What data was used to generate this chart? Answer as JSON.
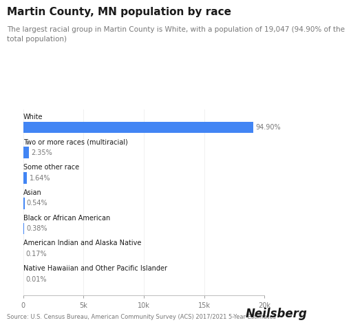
{
  "title": "Martin County, MN population by race",
  "subtitle": "The largest racial group in Martin County is White, with a population of 19,047 (94.90% of the\ntotal population)",
  "categories": [
    "White",
    "Two or more races (multiracial)",
    "Some other race",
    "Asian",
    "Black or African American",
    "American Indian and Alaska Native",
    "Native Hawaiian and Other Pacific Islander"
  ],
  "values": [
    19047,
    472,
    330,
    108,
    76,
    34,
    2
  ],
  "percentages": [
    "94.90%",
    "2.35%",
    "1.64%",
    "0.54%",
    "0.38%",
    "0.17%",
    "0.01%"
  ],
  "bar_color": "#4285F4",
  "text_color_dark": "#1a1a1a",
  "text_color_gray": "#777777",
  "background_color": "#ffffff",
  "source_text": "Source: U.S. Census Bureau, American Community Survey (ACS) 2017/2021 5-Year Estimates",
  "xlim": [
    0,
    20000
  ],
  "xticks": [
    0,
    5000,
    10000,
    15000,
    20000
  ],
  "xtick_labels": [
    "0",
    "5k",
    "10k",
    "15k",
    "20k"
  ],
  "footer_brand": "Neilsberg",
  "title_fontsize": 11,
  "subtitle_fontsize": 7.5,
  "category_fontsize": 7,
  "pct_fontsize": 7,
  "tick_fontsize": 7,
  "source_fontsize": 6,
  "brand_fontsize": 12
}
